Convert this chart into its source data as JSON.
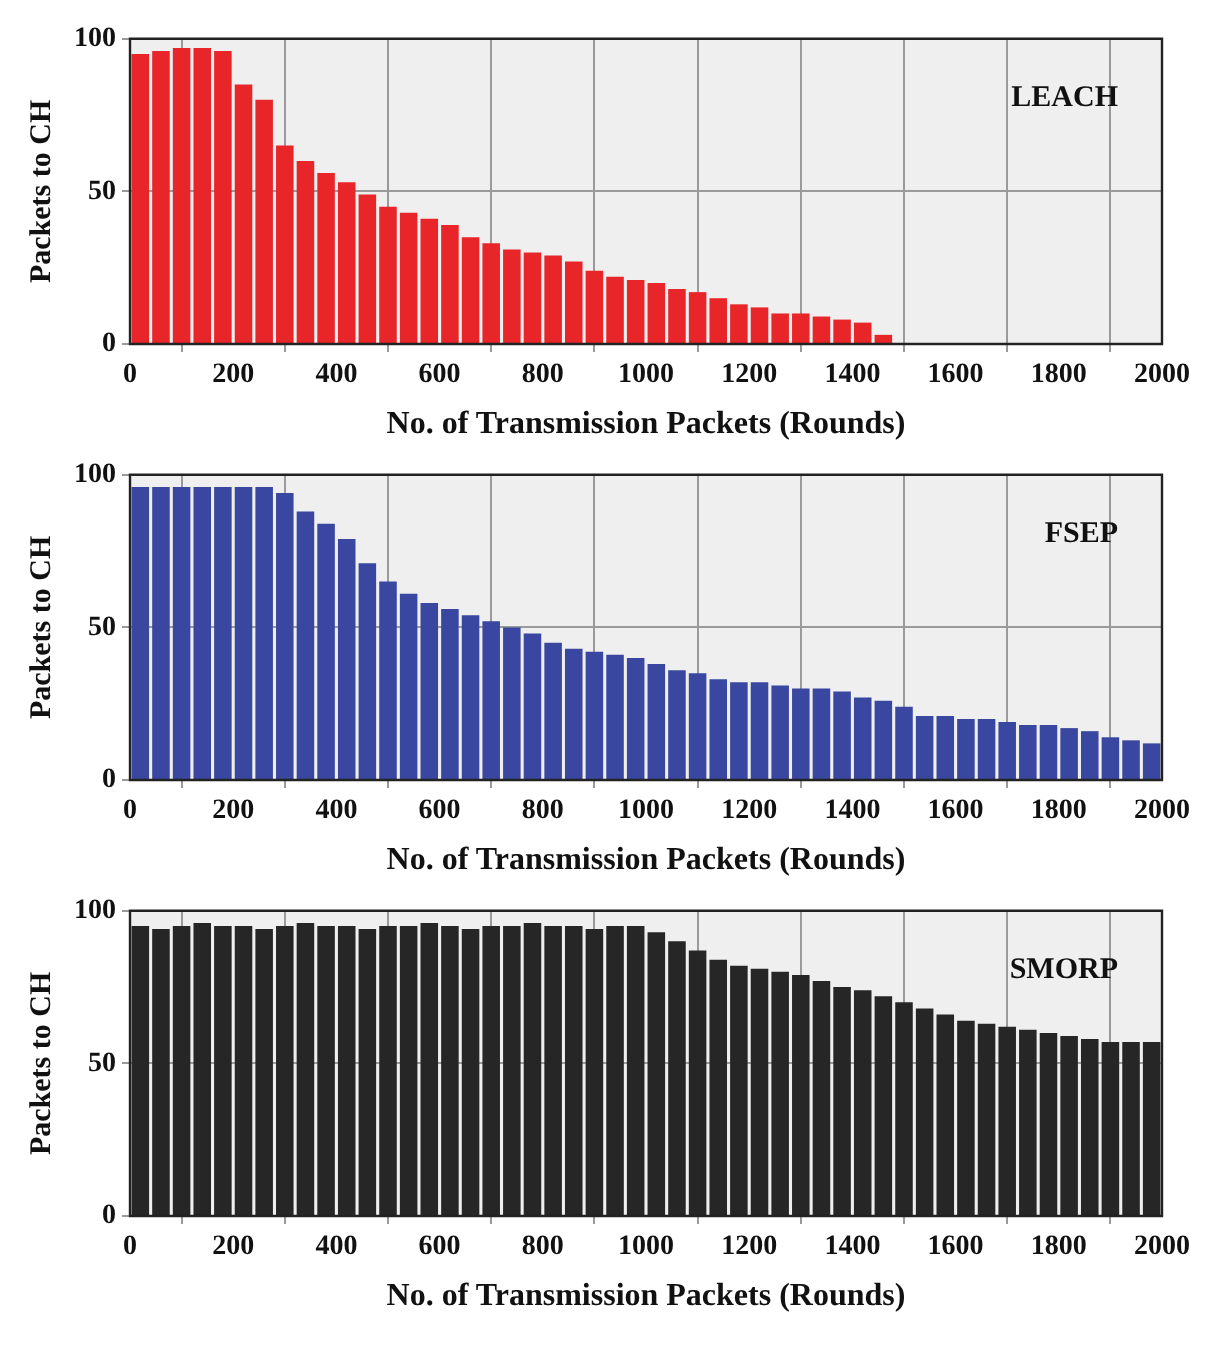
{
  "chart_data": [
    {
      "type": "bar",
      "xlabel": "No. of Transmission Packets (Rounds)",
      "ylabel": "Packets to CH",
      "annotations": [
        "LEACH"
      ],
      "x": [
        20,
        60,
        100,
        140,
        180,
        220,
        260,
        300,
        340,
        380,
        420,
        460,
        500,
        540,
        580,
        620,
        660,
        700,
        740,
        780,
        820,
        860,
        900,
        940,
        980,
        1020,
        1060,
        1100,
        1140,
        1180,
        1220,
        1260,
        1300,
        1340,
        1380,
        1420,
        1460,
        1500,
        1540,
        1580,
        1620,
        1660,
        1700,
        1740,
        1780,
        1820,
        1860,
        1900,
        1940,
        1980
      ],
      "series": [
        {
          "color": "#e8262a",
          "values": [
            95,
            96,
            97,
            97,
            96,
            85,
            80,
            65,
            60,
            56,
            53,
            49,
            45,
            43,
            41,
            39,
            35,
            33,
            31,
            30,
            29,
            27,
            24,
            22,
            21,
            20,
            18,
            17,
            15,
            13,
            12,
            10,
            10,
            9,
            8,
            7,
            3,
            0,
            0,
            0,
            0,
            0,
            0,
            0,
            0,
            0,
            0,
            0,
            0,
            0
          ]
        }
      ],
      "xlim": [
        0,
        2000
      ],
      "xticks": [
        0,
        200,
        400,
        600,
        800,
        1000,
        1200,
        1400,
        1600,
        1800,
        2000
      ],
      "ylim": [
        0,
        100
      ],
      "yticks": [
        0,
        50,
        100
      ],
      "grid": true,
      "legend": false
    },
    {
      "type": "bar",
      "xlabel": "No. of Transmission Packets (Rounds)",
      "ylabel": "Packets to CH",
      "annotations": [
        "FSEP"
      ],
      "x": [
        20,
        60,
        100,
        140,
        180,
        220,
        260,
        300,
        340,
        380,
        420,
        460,
        500,
        540,
        580,
        620,
        660,
        700,
        740,
        780,
        820,
        860,
        900,
        940,
        980,
        1020,
        1060,
        1100,
        1140,
        1180,
        1220,
        1260,
        1300,
        1340,
        1380,
        1420,
        1460,
        1500,
        1540,
        1580,
        1620,
        1660,
        1700,
        1740,
        1780,
        1820,
        1860,
        1900,
        1940,
        1980
      ],
      "series": [
        {
          "color": "#3a47a0",
          "values": [
            96,
            96,
            96,
            96,
            96,
            96,
            96,
            94,
            88,
            84,
            79,
            71,
            65,
            61,
            58,
            56,
            54,
            52,
            50,
            48,
            45,
            43,
            42,
            41,
            40,
            38,
            36,
            35,
            33,
            32,
            32,
            31,
            30,
            30,
            29,
            27,
            26,
            24,
            21,
            21,
            20,
            20,
            19,
            18,
            18,
            17,
            16,
            14,
            13,
            12
          ]
        }
      ],
      "xlim": [
        0,
        2000
      ],
      "xticks": [
        0,
        200,
        400,
        600,
        800,
        1000,
        1200,
        1400,
        1600,
        1800,
        2000
      ],
      "ylim": [
        0,
        100
      ],
      "yticks": [
        0,
        50,
        100
      ],
      "grid": true,
      "legend": false
    },
    {
      "type": "bar",
      "xlabel": "No. of Transmission Packets (Rounds)",
      "ylabel": "Packets to CH",
      "annotations": [
        "SMORP"
      ],
      "x": [
        20,
        60,
        100,
        140,
        180,
        220,
        260,
        300,
        340,
        380,
        420,
        460,
        500,
        540,
        580,
        620,
        660,
        700,
        740,
        780,
        820,
        860,
        900,
        940,
        980,
        1020,
        1060,
        1100,
        1140,
        1180,
        1220,
        1260,
        1300,
        1340,
        1380,
        1420,
        1460,
        1500,
        1540,
        1580,
        1620,
        1660,
        1700,
        1740,
        1780,
        1820,
        1860,
        1900,
        1940,
        1980
      ],
      "series": [
        {
          "color": "#262626",
          "values": [
            95,
            94,
            95,
            96,
            95,
            95,
            94,
            95,
            96,
            95,
            95,
            94,
            95,
            95,
            96,
            95,
            94,
            95,
            95,
            96,
            95,
            95,
            94,
            95,
            95,
            93,
            90,
            87,
            84,
            82,
            81,
            80,
            79,
            77,
            75,
            74,
            72,
            70,
            68,
            66,
            64,
            63,
            62,
            61,
            60,
            59,
            58,
            57,
            57,
            57
          ]
        }
      ],
      "xlim": [
        0,
        2000
      ],
      "xticks": [
        0,
        200,
        400,
        600,
        800,
        1000,
        1200,
        1400,
        1600,
        1800,
        2000
      ],
      "ylim": [
        0,
        100
      ],
      "yticks": [
        0,
        50,
        100
      ],
      "grid": true,
      "legend": false
    }
  ]
}
